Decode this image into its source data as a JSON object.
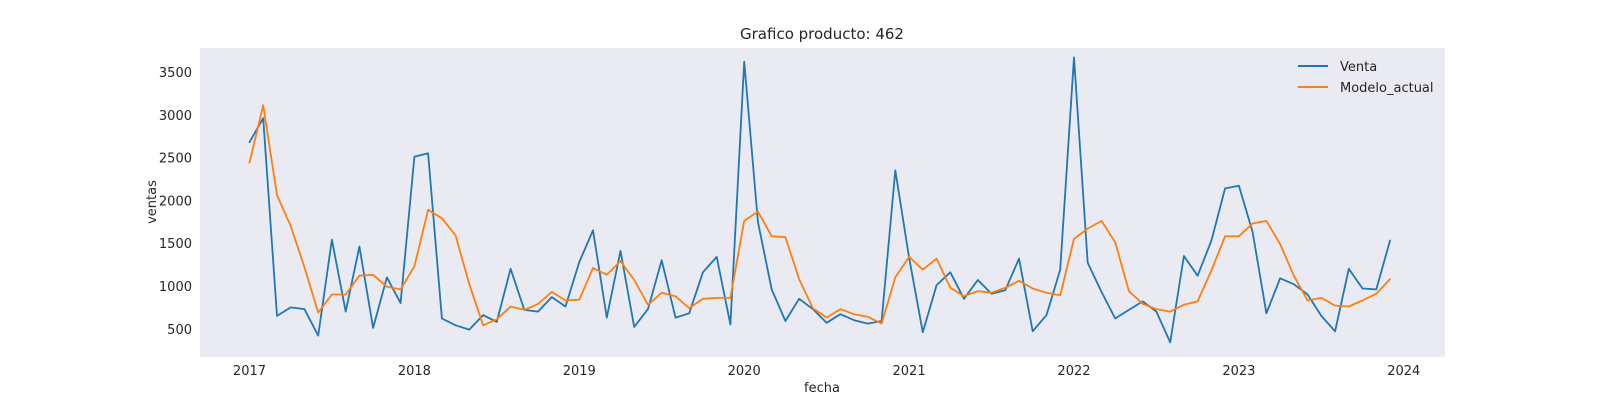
{
  "chart_data": {
    "type": "line",
    "title": "Grafico producto: 462",
    "xlabel": "fecha",
    "ylabel": "ventas",
    "xlim": [
      2016.7,
      2024.25
    ],
    "ylim": [
      170,
      3780
    ],
    "x_ticks": [
      2017,
      2018,
      2019,
      2020,
      2021,
      2022,
      2023,
      2024
    ],
    "x_tick_labels": [
      "2017",
      "2018",
      "2019",
      "2020",
      "2021",
      "2022",
      "2023",
      "2024"
    ],
    "y_ticks": [
      500,
      1000,
      1500,
      2000,
      2500,
      3000,
      3500
    ],
    "y_tick_labels": [
      "500",
      "1000",
      "1500",
      "2000",
      "2500",
      "3000",
      "3500"
    ],
    "grid": false,
    "legend_position": "top-right",
    "background": "#eaeaf2",
    "series": [
      {
        "name": "Venta",
        "color": "#1f77b4",
        "start": "2017-01",
        "frequency": "monthly",
        "values": [
          2680,
          2960,
          650,
          750,
          730,
          420,
          1540,
          700,
          1460,
          510,
          1100,
          800,
          2510,
          2550,
          620,
          540,
          490,
          660,
          580,
          1200,
          720,
          700,
          870,
          760,
          1280,
          1650,
          630,
          1410,
          520,
          730,
          1300,
          630,
          680,
          1160,
          1340,
          550,
          3620,
          1750,
          960,
          590,
          850,
          730,
          570,
          670,
          600,
          560,
          590,
          2350,
          1330,
          460,
          1010,
          1160,
          850,
          1070,
          910,
          950,
          1320,
          470,
          660,
          1190,
          3670,
          1270,
          930,
          620,
          720,
          820,
          700,
          340,
          1350,
          1120,
          1530,
          2140,
          2170,
          1630,
          680,
          1090,
          1020,
          900,
          650,
          470,
          1200,
          970,
          960,
          1530
        ]
      },
      {
        "name": "Modelo_actual",
        "color": "#ff7f0e",
        "start": "2017-01",
        "frequency": "monthly",
        "values": [
          2440,
          3110,
          2060,
          1700,
          1220,
          690,
          900,
          900,
          1120,
          1130,
          990,
          960,
          1230,
          1890,
          1790,
          1590,
          1020,
          540,
          610,
          760,
          720,
          790,
          930,
          830,
          840,
          1210,
          1130,
          1290,
          1070,
          780,
          920,
          880,
          740,
          850,
          860,
          860,
          1760,
          1870,
          1580,
          1570,
          1080,
          740,
          630,
          730,
          670,
          640,
          560,
          1100,
          1340,
          1190,
          1320,
          980,
          880,
          940,
          920,
          980,
          1060,
          970,
          920,
          890,
          1550,
          1670,
          1760,
          1510,
          940,
          790,
          730,
          700,
          780,
          820,
          1180,
          1580,
          1580,
          1730,
          1760,
          1490,
          1120,
          830,
          860,
          770,
          760,
          830,
          910,
          1080
        ]
      }
    ]
  }
}
